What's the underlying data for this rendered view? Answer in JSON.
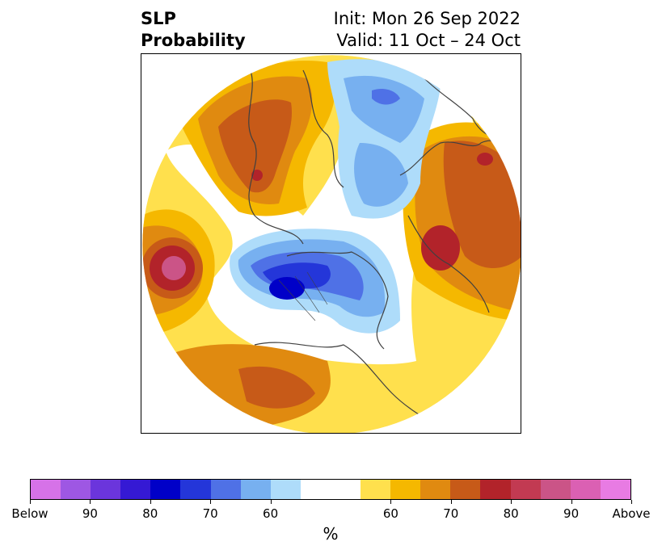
{
  "title": {
    "left_line1": "SLP",
    "left_line2": "Probability",
    "right_line1": "Init: Mon 26 Sep 2022",
    "right_line2": "Valid: 11 Oct – 24 Oct"
  },
  "colorbar": {
    "label": "%",
    "colors": [
      "#d672e8",
      "#9e57e3",
      "#6b35dc",
      "#3519d4",
      "#0000c8",
      "#2436d9",
      "#4f71e6",
      "#77b0f0",
      "#aedcfa",
      "#ffffff",
      "#ffe04d",
      "#f5b800",
      "#e08a10",
      "#c75a18",
      "#b2232a",
      "#c23a52",
      "#cb5487",
      "#db60b3",
      "#e87be3"
    ],
    "tick_labels": [
      "Below",
      "90",
      "80",
      "70",
      "60",
      "60",
      "70",
      "80",
      "90",
      "Above"
    ]
  },
  "map": {
    "projection": "north-polar-stereographic",
    "variable": "SLP",
    "categories": [
      "Below",
      "Above"
    ]
  }
}
